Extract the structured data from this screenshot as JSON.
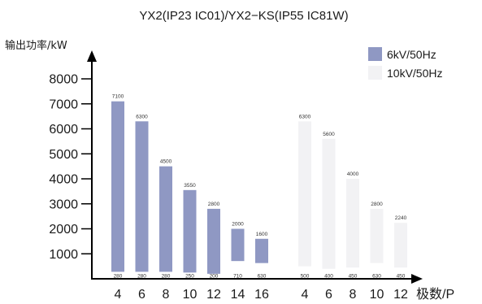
{
  "chart_data": {
    "type": "bar",
    "title": "YX2(IP23 IC01)/YX2−KS(IP55 IC81W)",
    "ylabel": "输出功率/kW",
    "xlabel": "极数/P",
    "ylim": [
      0,
      8000
    ],
    "yticks": [
      1000,
      2000,
      3000,
      4000,
      5000,
      6000,
      7000,
      8000
    ],
    "legend_position": "top-right",
    "groups": [
      {
        "series_index": 0,
        "poles": [
          "4",
          "6",
          "8",
          "10",
          "12",
          "14",
          "16"
        ],
        "max": [
          7100,
          6300,
          4500,
          3550,
          2800,
          2000,
          1600
        ],
        "min": [
          280,
          280,
          280,
          250,
          200,
          710,
          630
        ]
      },
      {
        "series_index": 1,
        "poles": [
          "4",
          "6",
          "8",
          "10",
          "12"
        ],
        "max": [
          6300,
          5600,
          4000,
          2800,
          2240
        ],
        "min": [
          500,
          400,
          450,
          630,
          450
        ]
      }
    ],
    "series": [
      {
        "name": "6kV/50Hz",
        "color": "#8f98c3"
      },
      {
        "name": "10kV/50Hz",
        "color": "#f2f2f4"
      }
    ]
  }
}
